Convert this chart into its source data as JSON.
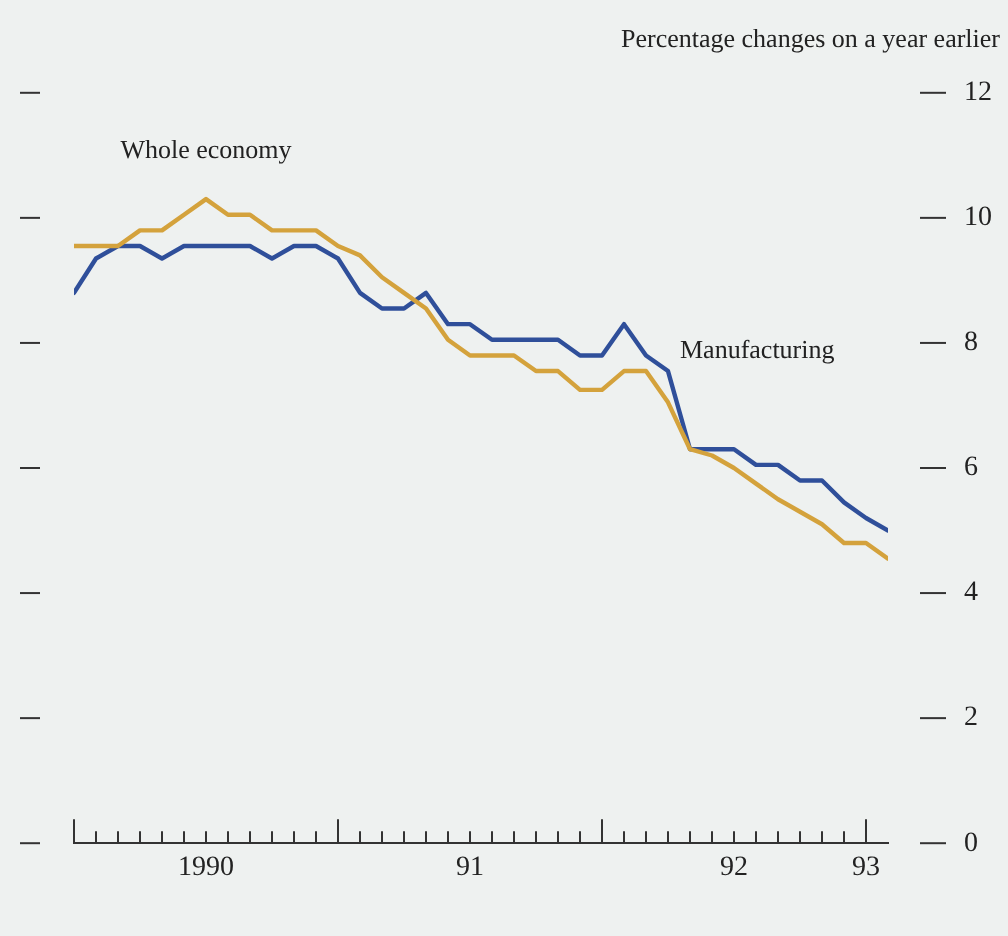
{
  "chart_data": {
    "type": "line",
    "ylabel": "Percentage changes on a year earlier",
    "x": [
      "1990-01",
      "1990-02",
      "1990-03",
      "1990-04",
      "1990-05",
      "1990-06",
      "1990-07",
      "1990-08",
      "1990-09",
      "1990-10",
      "1990-11",
      "1990-12",
      "1991-01",
      "1991-02",
      "1991-03",
      "1991-04",
      "1991-05",
      "1991-06",
      "1991-07",
      "1991-08",
      "1991-09",
      "1991-10",
      "1991-11",
      "1991-12",
      "1992-01",
      "1992-02",
      "1992-03",
      "1992-04",
      "1992-05",
      "1992-06",
      "1992-07",
      "1992-08",
      "1992-09",
      "1992-10",
      "1992-11",
      "1992-12",
      "1993-01",
      "1993-02"
    ],
    "series": [
      {
        "name": "Whole economy",
        "color": "#d4a23c",
        "values": [
          9.55,
          9.55,
          9.55,
          9.8,
          9.8,
          10.05,
          10.3,
          10.05,
          10.05,
          9.8,
          9.8,
          9.8,
          9.55,
          9.4,
          9.05,
          8.8,
          8.55,
          8.05,
          7.8,
          7.8,
          7.8,
          7.55,
          7.55,
          7.25,
          7.25,
          7.55,
          7.55,
          7.05,
          6.3,
          6.2,
          6.0,
          5.75,
          5.5,
          5.3,
          5.1,
          4.8,
          4.8,
          4.55
        ]
      },
      {
        "name": "Manufacturing",
        "color": "#2f4f9a",
        "values": [
          8.8,
          9.35,
          9.55,
          9.55,
          9.35,
          9.55,
          9.55,
          9.55,
          9.55,
          9.35,
          9.55,
          9.55,
          9.35,
          8.8,
          8.55,
          8.55,
          8.8,
          8.3,
          8.3,
          8.05,
          8.05,
          8.05,
          8.05,
          7.8,
          7.8,
          8.3,
          7.8,
          7.55,
          6.3,
          6.3,
          6.3,
          6.05,
          6.05,
          5.8,
          5.8,
          5.45,
          5.2,
          5.0
        ]
      }
    ],
    "xlim": [
      "1990-01",
      "1993-02"
    ],
    "xticks": [
      {
        "value": "1990-01",
        "label": null
      },
      {
        "value": "1990-02",
        "label": null
      },
      {
        "value": "1990-03",
        "label": null
      },
      {
        "value": "1990-04",
        "label": null
      },
      {
        "value": "1990-05",
        "label": null
      },
      {
        "value": "1990-06",
        "label": null
      },
      {
        "value": "1990-07",
        "label": "1990"
      },
      {
        "value": "1990-08",
        "label": null
      },
      {
        "value": "1990-09",
        "label": null
      },
      {
        "value": "1990-10",
        "label": null
      },
      {
        "value": "1990-11",
        "label": null
      },
      {
        "value": "1990-12",
        "label": null
      },
      {
        "value": "1991-01",
        "label": null
      },
      {
        "value": "1991-02",
        "label": null
      },
      {
        "value": "1991-03",
        "label": null
      },
      {
        "value": "1991-04",
        "label": null
      },
      {
        "value": "1991-05",
        "label": null
      },
      {
        "value": "1991-06",
        "label": null
      },
      {
        "value": "1991-07",
        "label": "91"
      },
      {
        "value": "1991-08",
        "label": null
      },
      {
        "value": "1991-09",
        "label": null
      },
      {
        "value": "1991-10",
        "label": null
      },
      {
        "value": "1991-11",
        "label": null
      },
      {
        "value": "1991-12",
        "label": null
      },
      {
        "value": "1992-01",
        "label": null
      },
      {
        "value": "1992-02",
        "label": null
      },
      {
        "value": "1992-03",
        "label": null
      },
      {
        "value": "1992-04",
        "label": null
      },
      {
        "value": "1992-05",
        "label": null
      },
      {
        "value": "1992-06",
        "label": null
      },
      {
        "value": "1992-07",
        "label": "92"
      },
      {
        "value": "1992-08",
        "label": null
      },
      {
        "value": "1992-09",
        "label": null
      },
      {
        "value": "1992-10",
        "label": null
      },
      {
        "value": "1992-11",
        "label": null
      },
      {
        "value": "1992-12",
        "label": null
      },
      {
        "value": "1993-01",
        "label": "93"
      }
    ],
    "ylim": [
      0,
      12
    ],
    "yticks": [
      0,
      2,
      4,
      6,
      8,
      10,
      12
    ],
    "grid": false,
    "legend": false,
    "line_style": "solid",
    "marker": "none"
  }
}
